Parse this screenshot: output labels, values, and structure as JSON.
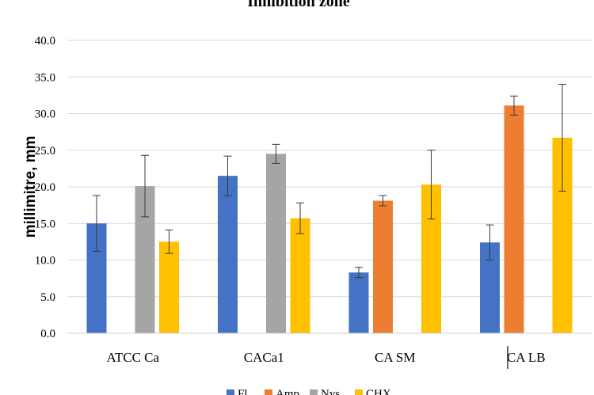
{
  "chart_data": {
    "type": "bar",
    "title": "Inhibition zone",
    "ylabel": "millimitre, mm",
    "xlabel": "",
    "ylim": [
      0,
      40
    ],
    "yticks": [
      "0.0",
      "5.0",
      "10.0",
      "15.0",
      "20.0",
      "25.0",
      "30.0",
      "35.0",
      "40.0"
    ],
    "grid": true,
    "legend_position": "bottom",
    "categories": [
      "ATCC Ca",
      "CACa1",
      "CA SM",
      "CA LB"
    ],
    "series": [
      {
        "name": "Fl",
        "color": "#4472C4",
        "values": [
          15.0,
          21.5,
          8.3,
          12.4
        ],
        "errors": [
          3.8,
          2.7,
          0.7,
          2.4
        ]
      },
      {
        "name": "Amp",
        "color": "#ED7D31",
        "values": [
          null,
          null,
          18.1,
          31.1
        ],
        "errors": [
          null,
          null,
          0.7,
          1.3
        ]
      },
      {
        "name": "Nys",
        "color": "#A5A5A5",
        "values": [
          20.1,
          24.5,
          null,
          null
        ],
        "errors": [
          4.2,
          1.3,
          null,
          null
        ]
      },
      {
        "name": "CHX",
        "color": "#FFC000",
        "values": [
          12.5,
          15.7,
          20.3,
          26.7
        ],
        "errors": [
          1.6,
          2.1,
          4.7,
          7.3
        ]
      }
    ]
  }
}
